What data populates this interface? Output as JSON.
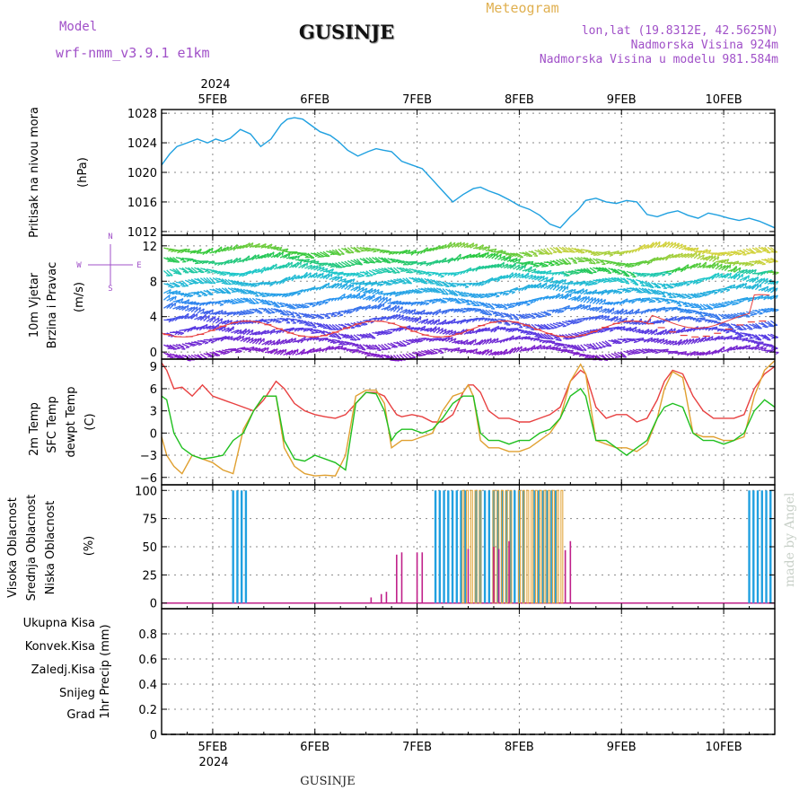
{
  "header": {
    "model_label": "Model",
    "model_name": "wrf-nmm_v3.9.1 e1km",
    "title": "GUSINJE",
    "meteogram": "Meteogram",
    "lonlat": "lon,lat (19.8312E, 42.5625N)",
    "elevation": "Nadmorska Visina 924m",
    "model_elevation": "Nadmorska Visina u modelu 981.584m",
    "year_top": "2024",
    "year_bottom": "2024",
    "footer_station": "GUSINJE",
    "credit": "made by Angel"
  },
  "colors": {
    "pressure": "#1fa0e0",
    "temp2m": "#e84040",
    "sfctemp": "#e0a030",
    "dewpt": "#20c020",
    "cloud_high": "#20a0e0",
    "cloud_mid": "#e0a030",
    "cloud_low": "#c0208a",
    "model_text": "#a050c8",
    "meteogram_text": "#e0b050"
  },
  "compass": {
    "n": "N",
    "s": "S",
    "w": "W",
    "e": "E"
  },
  "x_axis": {
    "ticks": [
      "5FEB",
      "6FEB",
      "7FEB",
      "8FEB",
      "9FEB",
      "10FEB"
    ],
    "range_days": [
      4.5,
      10.5
    ]
  },
  "panels": {
    "pressure": {
      "labels": [
        "Pritisak na nivou mora"
      ],
      "unit": "(hPa)",
      "yticks": [
        1012,
        1016,
        1020,
        1024,
        1028
      ]
    },
    "wind": {
      "labels": [
        "10m Vjetar",
        "Brzina i Pravac"
      ],
      "unit": "(m/s)",
      "yticks": [
        0,
        4,
        8,
        12
      ]
    },
    "temp": {
      "labels": [
        "2m Temp",
        "SFC Temp",
        "dewpt Temp"
      ],
      "unit": "(C)",
      "yticks": [
        -6,
        -3,
        0,
        3,
        6,
        9
      ]
    },
    "cloud": {
      "labels": [
        "Visoka Oblacnost",
        "Srednja Oblacnost",
        "Niska Oblacnost"
      ],
      "unit": "(%)",
      "yticks": [
        0,
        25,
        50,
        75,
        100
      ]
    },
    "precip": {
      "legend": [
        "Ukupna Kisa",
        "Konvek.Kisa",
        "Zaledj.Kisa",
        "Snijeg",
        "Grad"
      ],
      "legend_colors": [
        "#20c020",
        "#e84040",
        "#f08030",
        "#4040e0",
        "#20b0b0"
      ],
      "unit": "1hr Precip (mm)",
      "yticks": [
        0,
        0.2,
        0.4,
        0.6,
        0.8
      ]
    }
  },
  "chart_data": [
    {
      "type": "line",
      "name": "pressure",
      "ylim": [
        1011.5,
        1028.5
      ],
      "series": [
        {
          "x": [
            4.5,
            4.58,
            4.65,
            4.75,
            4.85,
            4.95,
            5.03,
            5.1,
            5.17,
            5.27,
            5.37,
            5.47,
            5.57,
            5.67,
            5.73,
            5.8,
            5.88,
            5.95,
            6.05,
            6.15,
            6.23,
            6.32,
            6.42,
            6.52,
            6.6,
            6.67,
            6.75,
            6.85,
            6.95,
            7.05,
            7.15,
            7.25,
            7.35,
            7.45,
            7.55,
            7.62,
            7.7,
            7.8,
            7.9,
            8.0,
            8.1,
            8.2,
            8.3,
            8.4,
            8.5,
            8.58,
            8.65,
            8.75,
            8.85,
            8.95,
            9.05,
            9.15,
            9.25,
            9.35,
            9.45,
            9.55,
            9.65,
            9.75,
            9.85,
            9.95,
            10.05,
            10.15,
            10.25,
            10.35,
            10.45,
            10.5
          ],
          "y": [
            1021.0,
            1022.5,
            1023.5,
            1024.0,
            1024.5,
            1024.0,
            1024.5,
            1024.2,
            1024.6,
            1025.8,
            1025.2,
            1023.5,
            1024.5,
            1026.5,
            1027.2,
            1027.4,
            1027.2,
            1026.5,
            1025.5,
            1025.0,
            1024.2,
            1023.0,
            1022.2,
            1022.8,
            1023.2,
            1023.0,
            1022.8,
            1021.5,
            1021.0,
            1020.5,
            1019.0,
            1017.5,
            1016.0,
            1017.0,
            1017.8,
            1018.0,
            1017.5,
            1017.0,
            1016.3,
            1015.5,
            1015.0,
            1014.2,
            1013.0,
            1012.5,
            1014.0,
            1015.0,
            1016.2,
            1016.5,
            1016.0,
            1015.8,
            1016.2,
            1016.0,
            1014.3,
            1014.0,
            1014.5,
            1014.8,
            1014.2,
            1013.8,
            1014.5,
            1014.2,
            1013.8,
            1013.5,
            1013.8,
            1013.4,
            1012.8,
            1012.5
          ],
          "color_key": "pressure"
        }
      ]
    },
    {
      "type": "barbs",
      "name": "wind",
      "ylim": [
        -0.8,
        13.2
      ],
      "note": "wind vectors coloured by speed with direction indicator lines"
    },
    {
      "type": "line",
      "name": "temperature",
      "ylim": [
        -7,
        10
      ],
      "series": [
        {
          "key": "temp2m",
          "x": [
            4.5,
            4.55,
            4.62,
            4.7,
            4.8,
            4.9,
            5.0,
            5.1,
            5.2,
            5.3,
            5.4,
            5.5,
            5.62,
            5.7,
            5.8,
            5.9,
            6.0,
            6.1,
            6.2,
            6.3,
            6.4,
            6.5,
            6.6,
            6.68,
            6.75,
            6.8,
            6.85,
            6.95,
            7.05,
            7.15,
            7.25,
            7.35,
            7.45,
            7.5,
            7.55,
            7.62,
            7.7,
            7.8,
            7.9,
            8.0,
            8.1,
            8.2,
            8.3,
            8.4,
            8.5,
            8.6,
            8.65,
            8.75,
            8.85,
            8.95,
            9.05,
            9.15,
            9.25,
            9.35,
            9.42,
            9.5,
            9.6,
            9.7,
            9.8,
            9.9,
            10.0,
            10.1,
            10.2,
            10.3,
            10.4,
            10.5
          ],
          "y": [
            9.5,
            8.5,
            6.0,
            6.2,
            5.0,
            6.5,
            5.0,
            4.5,
            4.0,
            3.5,
            3.0,
            4.5,
            7.0,
            6.0,
            4.0,
            3.0,
            2.5,
            2.2,
            2.0,
            2.5,
            4.0,
            5.5,
            5.5,
            5.0,
            3.5,
            2.5,
            2.2,
            2.5,
            2.2,
            1.5,
            1.5,
            2.5,
            5.5,
            6.5,
            6.5,
            5.5,
            3.0,
            2.0,
            2.0,
            1.5,
            1.5,
            2.0,
            2.5,
            3.5,
            7.0,
            8.5,
            8.0,
            3.5,
            2.0,
            2.5,
            2.5,
            1.5,
            2.0,
            4.5,
            7.0,
            8.5,
            8.0,
            5.0,
            3.0,
            2.0,
            2.0,
            2.0,
            2.5,
            6.0,
            8.0,
            9.0
          ]
        },
        {
          "key": "sfctemp",
          "x": [
            4.5,
            4.55,
            4.62,
            4.7,
            4.8,
            4.9,
            5.0,
            5.1,
            5.2,
            5.3,
            5.4,
            5.5,
            5.62,
            5.7,
            5.8,
            5.9,
            6.0,
            6.1,
            6.2,
            6.3,
            6.4,
            6.5,
            6.6,
            6.68,
            6.75,
            6.8,
            6.85,
            6.95,
            7.05,
            7.15,
            7.25,
            7.35,
            7.45,
            7.5,
            7.55,
            7.62,
            7.7,
            7.8,
            7.9,
            8.0,
            8.1,
            8.2,
            8.3,
            8.4,
            8.5,
            8.6,
            8.65,
            8.75,
            8.85,
            8.95,
            9.05,
            9.15,
            9.25,
            9.35,
            9.42,
            9.5,
            9.6,
            9.7,
            9.8,
            9.9,
            10.0,
            10.1,
            10.2,
            10.3,
            10.4,
            10.5
          ],
          "y": [
            -0.5,
            -3.0,
            -4.5,
            -5.5,
            -3.0,
            -3.5,
            -4.0,
            -5.0,
            -5.5,
            0.5,
            3.0,
            5.0,
            5.0,
            -2.0,
            -4.5,
            -5.5,
            -5.8,
            -5.7,
            -5.8,
            -3.0,
            5.0,
            5.8,
            5.8,
            4.0,
            -2.0,
            -1.5,
            -1.0,
            -1.0,
            -0.5,
            0.0,
            3.0,
            5.0,
            5.5,
            6.5,
            5.0,
            -1.0,
            -2.0,
            -2.0,
            -2.5,
            -2.5,
            -2.0,
            -1.0,
            0.0,
            2.0,
            7.0,
            9.3,
            8.0,
            -1.0,
            -1.5,
            -2.0,
            -2.0,
            -2.5,
            -1.5,
            2.0,
            6.0,
            8.3,
            7.5,
            0.0,
            -0.5,
            -0.5,
            -1.0,
            -1.0,
            -0.5,
            5.0,
            8.5,
            9.8
          ]
        },
        {
          "key": "dewpt",
          "x": [
            4.5,
            4.55,
            4.62,
            4.7,
            4.8,
            4.9,
            5.0,
            5.1,
            5.2,
            5.3,
            5.4,
            5.5,
            5.62,
            5.7,
            5.8,
            5.9,
            6.0,
            6.1,
            6.2,
            6.3,
            6.4,
            6.5,
            6.6,
            6.68,
            6.75,
            6.8,
            6.85,
            6.95,
            7.05,
            7.15,
            7.25,
            7.35,
            7.45,
            7.5,
            7.55,
            7.62,
            7.7,
            7.8,
            7.9,
            8.0,
            8.1,
            8.2,
            8.3,
            8.4,
            8.5,
            8.6,
            8.65,
            8.75,
            8.85,
            8.95,
            9.05,
            9.15,
            9.25,
            9.35,
            9.42,
            9.5,
            9.6,
            9.7,
            9.8,
            9.9,
            10.0,
            10.1,
            10.2,
            10.3,
            10.4,
            10.5
          ],
          "y": [
            5.0,
            4.5,
            0.0,
            -2.0,
            -3.0,
            -3.5,
            -3.3,
            -3.0,
            -1.0,
            0.0,
            3.0,
            5.0,
            5.0,
            -1.0,
            -3.5,
            -3.8,
            -3.0,
            -3.5,
            -4.0,
            -5.0,
            4.0,
            5.5,
            5.3,
            3.0,
            -1.0,
            0.0,
            0.5,
            0.5,
            0.0,
            0.5,
            2.0,
            4.0,
            5.0,
            5.0,
            5.0,
            0.0,
            -1.0,
            -1.0,
            -1.5,
            -1.0,
            -1.0,
            0.0,
            0.5,
            2.0,
            5.0,
            6.0,
            5.0,
            -1.0,
            -1.0,
            -2.0,
            -3.0,
            -2.0,
            -1.0,
            2.0,
            3.5,
            4.0,
            3.5,
            0.0,
            -1.0,
            -1.0,
            -1.5,
            -1.0,
            0.0,
            3.0,
            4.5,
            3.5
          ]
        }
      ]
    },
    {
      "type": "bar",
      "name": "cloud",
      "ylim": [
        -5,
        105
      ],
      "high_intervals": [
        [
          5.2,
          5.35
        ],
        [
          7.18,
          7.5
        ],
        [
          7.58,
          8.06
        ],
        [
          8.15,
          8.38
        ],
        [
          10.25,
          10.48
        ]
      ],
      "mid_intervals": [
        [
          7.45,
          7.62
        ],
        [
          7.75,
          7.95
        ],
        [
          8.0,
          8.45
        ]
      ],
      "low_bars": [
        [
          6.55,
          5
        ],
        [
          6.65,
          8
        ],
        [
          6.7,
          10
        ],
        [
          6.8,
          43
        ],
        [
          6.85,
          45
        ],
        [
          7.0,
          45
        ],
        [
          7.05,
          45
        ],
        [
          7.5,
          48
        ],
        [
          7.75,
          50
        ],
        [
          7.8,
          48
        ],
        [
          7.9,
          55
        ],
        [
          8.45,
          47
        ],
        [
          8.5,
          55
        ]
      ]
    },
    {
      "type": "bar",
      "name": "precip",
      "ylim": [
        0,
        1.0
      ],
      "values": []
    }
  ]
}
